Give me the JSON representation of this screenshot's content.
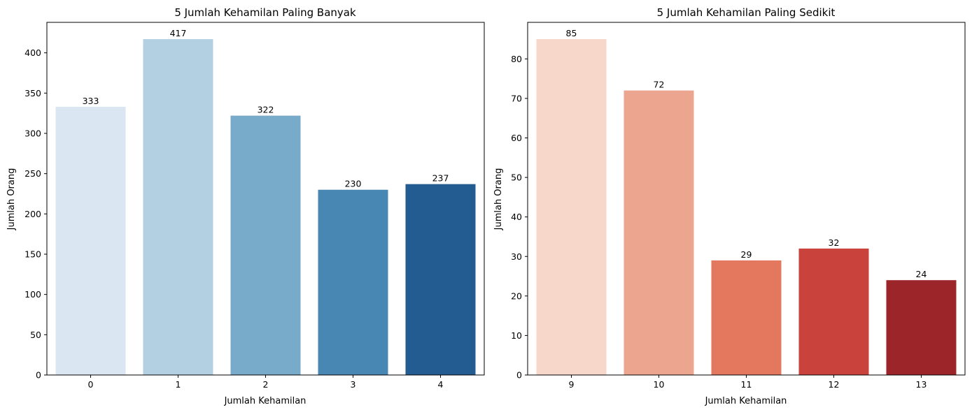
{
  "chart_data": [
    {
      "type": "bar",
      "title": "5 Jumlah Kehamilan Paling Banyak",
      "xlabel": "Jumlah Kehamilan",
      "ylabel": "Jumlah Orang",
      "categories": [
        "0",
        "1",
        "2",
        "3",
        "4"
      ],
      "values": [
        333,
        417,
        322,
        230,
        237
      ],
      "data_labels": [
        "333",
        "417",
        "322",
        "230",
        "237"
      ],
      "colors": [
        "#dae6f2",
        "#b3cfe2",
        "#78aac9",
        "#4886b4",
        "#235c91"
      ],
      "ylim": [
        0,
        437.85
      ],
      "yticks": [
        0,
        50,
        100,
        150,
        200,
        250,
        300,
        350,
        400
      ],
      "ytick_labels": [
        "0",
        "50",
        "100",
        "150",
        "200",
        "250",
        "300",
        "350",
        "400"
      ],
      "grid": false,
      "legend": "none"
    },
    {
      "type": "bar",
      "title": "5 Jumlah Kehamilan Paling Sedikit",
      "xlabel": "Jumlah Kehamilan",
      "ylabel": "Jumlah Orang",
      "categories": [
        "9",
        "10",
        "11",
        "12",
        "13"
      ],
      "values": [
        85,
        72,
        29,
        32,
        24
      ],
      "data_labels": [
        "85",
        "72",
        "29",
        "32",
        "24"
      ],
      "colors": [
        "#f6d7ca",
        "#eca690",
        "#e4785f",
        "#ca423c",
        "#9c252a"
      ],
      "ylim": [
        0,
        89.25
      ],
      "yticks": [
        0,
        10,
        20,
        30,
        40,
        50,
        60,
        70,
        80
      ],
      "ytick_labels": [
        "0",
        "10",
        "20",
        "30",
        "40",
        "50",
        "60",
        "70",
        "80"
      ],
      "grid": false,
      "legend": "none"
    }
  ]
}
